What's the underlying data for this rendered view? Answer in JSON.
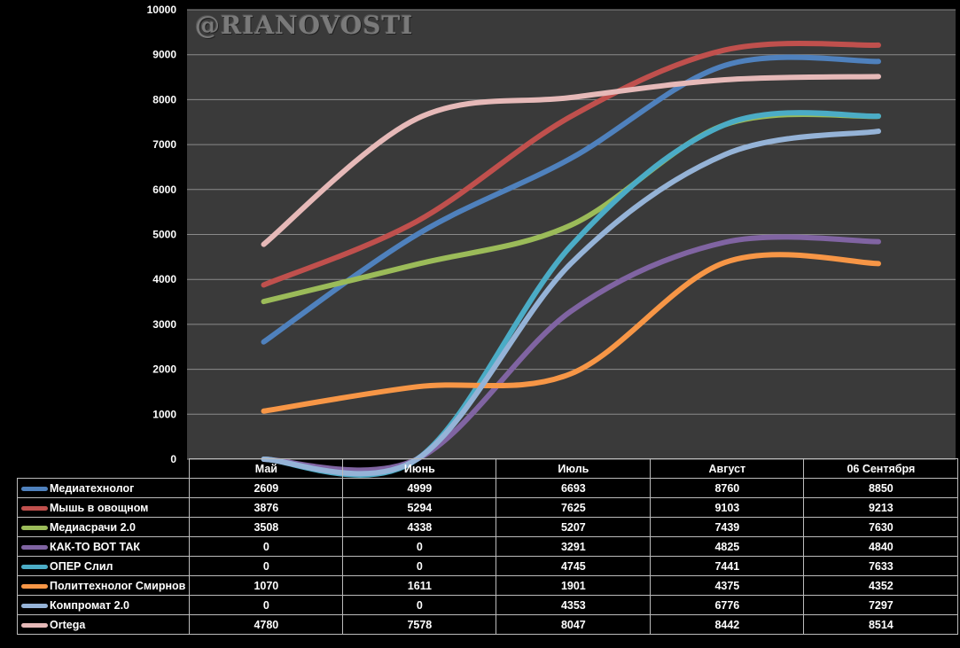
{
  "watermark": "@RIANOVOSTI",
  "chart_data": {
    "type": "line",
    "categories": [
      "Май",
      "Июнь",
      "Июль",
      "Август",
      "06 Сентября"
    ],
    "ylim": [
      0,
      10000
    ],
    "yticks": [
      "0",
      "1000",
      "2000",
      "3000",
      "4000",
      "5000",
      "6000",
      "7000",
      "8000",
      "9000",
      "10000"
    ],
    "grid": true,
    "legend": "table-below",
    "series": [
      {
        "name": "Медиатехнолог",
        "color": "#4f81bd",
        "values": [
          2609,
          4999,
          6693,
          8760,
          8850
        ]
      },
      {
        "name": "Мышь в овощном",
        "color": "#c0504d",
        "values": [
          3876,
          5294,
          7625,
          9103,
          9213
        ]
      },
      {
        "name": "Медиасрачи 2.0",
        "color": "#9bbb59",
        "values": [
          3508,
          4338,
          5207,
          7439,
          7630
        ]
      },
      {
        "name": "КАК-ТО ВОТ ТАК",
        "color": "#8064a2",
        "values": [
          0,
          0,
          3291,
          4825,
          4840
        ]
      },
      {
        "name": "ОПЕР Слил",
        "color": "#4bacc6",
        "values": [
          0,
          0,
          4745,
          7441,
          7633
        ]
      },
      {
        "name": "Политтехнолог Смирнов",
        "color": "#f79646",
        "values": [
          1070,
          1611,
          1901,
          4375,
          4352
        ]
      },
      {
        "name": "Компромат 2.0",
        "color": "#95b3d7",
        "values": [
          0,
          0,
          4353,
          6776,
          7297
        ]
      },
      {
        "name": "Ortega",
        "color": "#e6b9b8",
        "values": [
          4780,
          7578,
          8047,
          8442,
          8514
        ]
      }
    ]
  }
}
